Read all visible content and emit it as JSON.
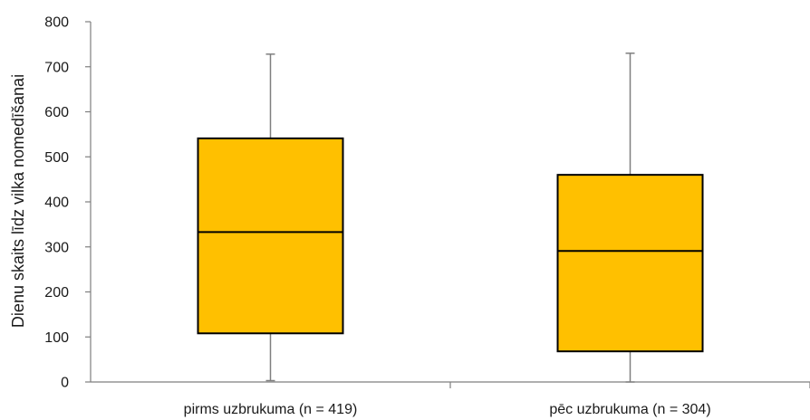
{
  "chart_data": {
    "type": "boxplot",
    "ylabel": "Dienu skaits līdz vilka nomedīšanai",
    "xlabel": "",
    "title": "",
    "ylim": [
      0,
      800
    ],
    "yticks": [
      0,
      100,
      200,
      300,
      400,
      500,
      600,
      700,
      800
    ],
    "grid": false,
    "legend": "none",
    "box_color": "#FFC000",
    "edge_color": "#000000",
    "whisker_color": "#7f7f7f",
    "categories": [
      "pirms uzbrukuma (n = 419)",
      "pēc uzbrukuma (n = 304)"
    ],
    "boxes": [
      {
        "min": 3,
        "q1": 108,
        "median": 333,
        "q3": 541,
        "max": 728
      },
      {
        "min": 0,
        "q1": 68,
        "median": 291,
        "q3": 460,
        "max": 730
      }
    ]
  }
}
